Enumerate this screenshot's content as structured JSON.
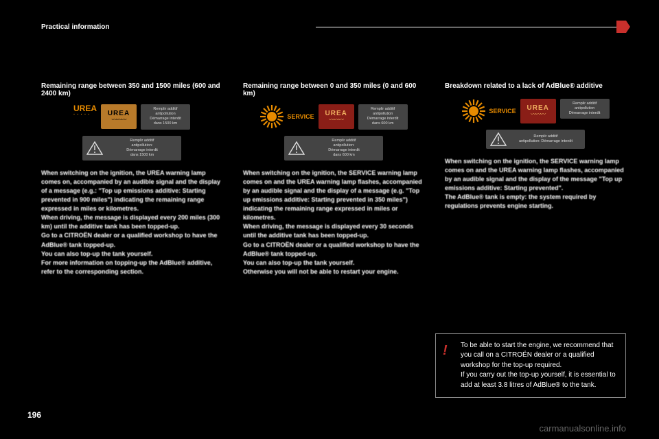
{
  "header": {
    "section_title": "Practical information",
    "page_number": "196",
    "watermark": "carmanualsonline.info"
  },
  "columns": [
    {
      "title": "Remaining range between 350 and 1500 miles (600 and 2400 km)",
      "indicator": {
        "type": "urea_text",
        "urea_label": "UREA",
        "urea_sub": "·····",
        "badge_bg": "#b87a2a",
        "badge_fg": "#000000",
        "badge_text": "UREA",
        "msg_small": "Remplir additif\nantipollution\nDémarrage interdit\ndans 1500 km",
        "msg_wide": "Remplir additif\nantipollution:\nDémarrage interdit\ndans 1500 km"
      },
      "body": "When switching on the ignition, the UREA warning lamp comes on, accompanied by an audible signal and the display of a message (e.g.: \"Top up emissions additive: Starting prevented in 900 miles\") indicating the remaining range expressed in miles or kilometres.\nWhen driving, the message is displayed every 200 miles (300 km) until the additive tank has been topped-up.\nGo to a CITROËN dealer or a qualified workshop to have the AdBlue® tank topped-up.\nYou can also top-up the tank yourself.\nFor more information on topping-up the AdBlue® additive, refer to the corresponding section."
    },
    {
      "title": "Remaining range between 0 and 350 miles (0 and 600 km)",
      "indicator": {
        "type": "service_sun",
        "sun_color": "#e78b00",
        "service_label": "SERVICE",
        "badge_bg": "#8a1e17",
        "badge_fg": "#f0b060",
        "badge_text": "UREA",
        "msg_small": "Remplir additif\nantipollution\nDémarrage interdit\ndans 600 km",
        "msg_wide": "Remplir additif\nantipollution:\nDémarrage interdit\ndans 600 km"
      },
      "body": "When switching on the ignition, the SERVICE warning lamp comes on and the UREA warning lamp flashes, accompanied by an audible signal and the display of a message (e.g. \"Top up emissions additive: Starting prevented in 350 miles\") indicating the remaining range expressed in miles or kilometres.\nWhen driving, the message is displayed every 30 seconds until the additive tank has been topped-up.\nGo to a CITROËN dealer or a qualified workshop to have the AdBlue® tank topped-up.\nYou can also top-up the tank yourself.\nOtherwise you will not be able to restart your engine."
    },
    {
      "title": "Breakdown related to a lack of AdBlue® additive",
      "indicator": {
        "type": "service_sun",
        "sun_color": "#e78b00",
        "service_label": "SERVICE",
        "badge_bg": "#8a1e17",
        "badge_fg": "#f0b060",
        "badge_text": "UREA",
        "msg_small": "Remplir additif\nantipollution\nDémarrage interdit",
        "msg_wide": "Remplir additif\nantipollution: Démarrage interdit"
      },
      "body": "When switching on the ignition, the SERVICE warning lamp comes on and the UREA warning lamp flashes, accompanied by an audible signal and the display of the message \"Top up emissions additive: Starting prevented\".\nThe AdBlue® tank is empty: the system required by regulations prevents engine starting."
    }
  ],
  "callout": {
    "bang": "!",
    "text": "To be able to start the engine, we recommend that you call on a CITROËN dealer or a qualified workshop for the top-up required.\nIf you carry out the top-up yourself, it is essential to add at least 3.8 litres of AdBlue® to the tank."
  },
  "style": {
    "background": "#000000",
    "text_color": "#ffffff",
    "accent": "#c9302c",
    "amber": "#e78b00",
    "msg_bg": "#444444"
  }
}
